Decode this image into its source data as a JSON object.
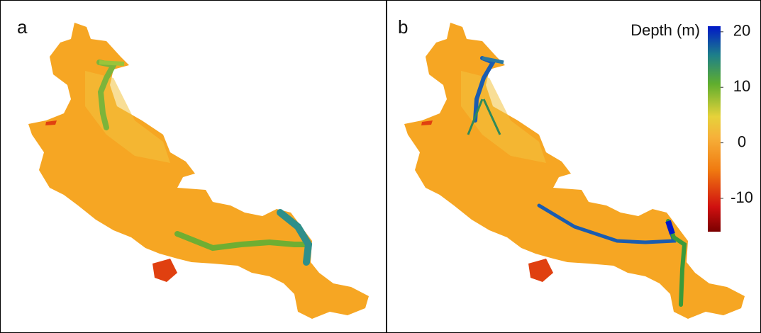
{
  "panels": [
    {
      "label": "a"
    },
    {
      "label": "b"
    }
  ],
  "colorbar": {
    "title": "Depth (m)",
    "lim": [
      -16,
      21
    ],
    "ticks": [
      20,
      10,
      0,
      -10
    ]
  }
}
